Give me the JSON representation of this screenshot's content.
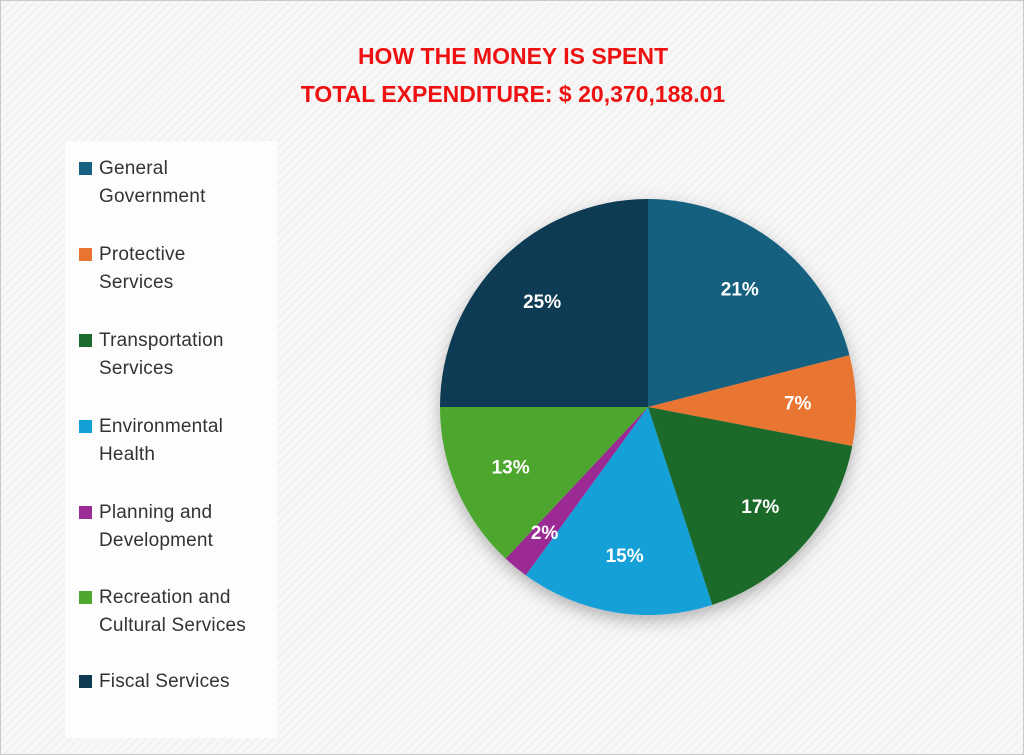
{
  "chart_data": {
    "type": "pie",
    "title": "HOW THE MONEY IS SPENT",
    "subtitle": "TOTAL EXPENDITURE:  $ 20,370,188.01",
    "categories": [
      "General Government",
      "Protective Services",
      "Transportation Services",
      "Environmental Health",
      "Planning and Development",
      "Recreation and Cultural Services",
      "Fiscal Services"
    ],
    "values": [
      21,
      7,
      17,
      15,
      2,
      13,
      25
    ],
    "labels": [
      "21%",
      "7%",
      "17%",
      "15%",
      "2%",
      "13%",
      "25%"
    ],
    "colors": [
      "#17607f",
      "#e97432",
      "#1b6b2c",
      "#13a0d8",
      "#9b2b95",
      "#4ea72f",
      "#0e3a52"
    ],
    "legend_position": "left",
    "legend_lines": [
      [
        "General",
        "Government"
      ],
      [
        "Protective",
        "Services"
      ],
      [
        "Transportation",
        "Services"
      ],
      [
        "Environmental",
        "Health"
      ],
      [
        "Planning and",
        "Development"
      ],
      [
        "Recreation and",
        "Cultural Services"
      ],
      [
        "Fiscal Services"
      ]
    ]
  }
}
